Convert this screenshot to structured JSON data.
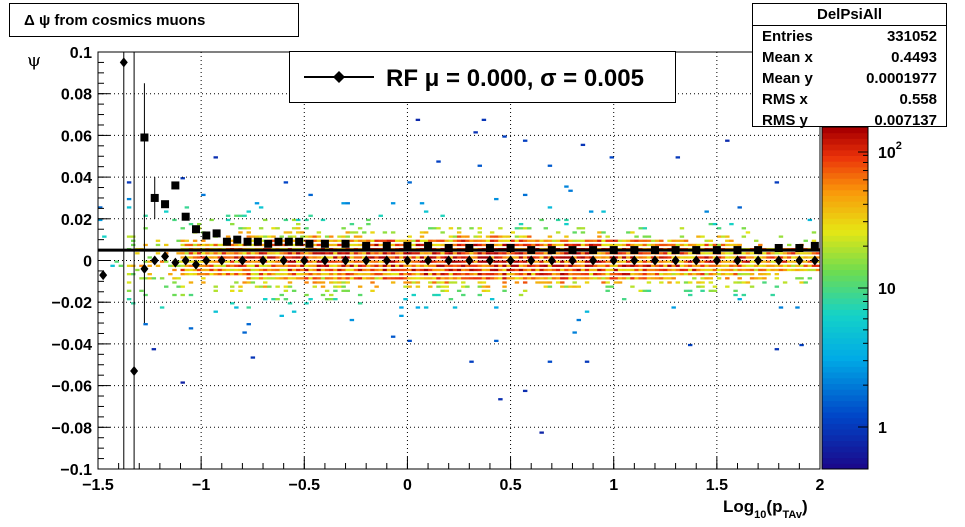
{
  "title_box": {
    "text": "Δ ψ from cosmics muons"
  },
  "stats": {
    "name": "DelPsiAll",
    "rows": [
      {
        "key": "Entries",
        "value": "331052"
      },
      {
        "key": "Mean x",
        "value": "0.4493"
      },
      {
        "key": "Mean y",
        "value": "0.0001977"
      },
      {
        "key": "RMS x",
        "value": "0.558"
      },
      {
        "key": "RMS y",
        "value": "0.007137"
      }
    ]
  },
  "legend": {
    "text": "RF μ =  0.000, σ =   0.005"
  },
  "colors": {
    "marker": "#000000",
    "palette_low": "#1a0a8c",
    "palette_high": "#b00000"
  },
  "chart_data": {
    "type": "heatmap",
    "title": "Δ ψ from cosmics muons",
    "xlabel": "Log10(pTAv)",
    "ylabel": "ψ",
    "xlim": [
      -1.5,
      2.0
    ],
    "ylim": [
      -0.1,
      0.1
    ],
    "x_ticks": [
      "−1.5",
      "−1",
      "−0.5",
      "0",
      "0.5",
      "1",
      "1.5",
      "2"
    ],
    "y_ticks": [
      "−0.1",
      "−0.08",
      "−0.06",
      "−0.04",
      "−0.02",
      "0",
      "0.02",
      "0.04",
      "0.06",
      "0.08",
      "0.1"
    ],
    "z_scale": "log",
    "z_ticks": [
      "1",
      "10",
      "10^2"
    ],
    "grid": true,
    "legend_position": "top-center",
    "density_model": {
      "center_y": 0.0,
      "sigma_y": 0.007137,
      "peak_x": 0.45
    },
    "horizontal_line_y": 0.005,
    "series": [
      {
        "name": "RF μ =  0.000, σ =   0.005",
        "marker": "diamond",
        "x": [
          -1.475,
          -1.375,
          -1.325,
          -1.275,
          -1.225,
          -1.175,
          -1.125,
          -1.075,
          -1.025,
          -0.975,
          -0.9,
          -0.8,
          -0.7,
          -0.6,
          -0.5,
          -0.4,
          -0.3,
          -0.2,
          -0.1,
          0.0,
          0.1,
          0.2,
          0.3,
          0.4,
          0.5,
          0.6,
          0.7,
          0.8,
          0.9,
          1.0,
          1.1,
          1.2,
          1.3,
          1.4,
          1.5,
          1.6,
          1.7,
          1.8,
          1.9,
          1.975
        ],
        "y": [
          -0.007,
          0.095,
          -0.053,
          -0.004,
          0.0,
          0.002,
          -0.001,
          0.0,
          -0.002,
          0.0,
          0.0,
          0.0,
          0.0,
          0.0,
          0.0,
          0.0,
          0.0,
          0.0,
          0.0,
          0.0,
          0.0,
          0.0,
          0.0,
          0.0,
          0.0,
          0.0,
          0.0,
          0.0,
          0.0,
          0.0,
          0.0,
          0.0,
          0.0,
          0.0,
          0.0,
          0.0,
          0.0,
          0.0,
          0.0,
          0.0
        ]
      },
      {
        "name": "",
        "marker": "square",
        "x": [
          -1.275,
          -1.225,
          -1.175,
          -1.125,
          -1.075,
          -1.025,
          -0.975,
          -0.925,
          -0.875,
          -0.825,
          -0.775,
          -0.725,
          -0.675,
          -0.625,
          -0.575,
          -0.525,
          -0.475,
          -0.4,
          -0.3,
          -0.2,
          -0.1,
          0.0,
          0.1,
          0.2,
          0.3,
          0.4,
          0.5,
          0.6,
          0.7,
          0.8,
          0.9,
          1.0,
          1.1,
          1.2,
          1.3,
          1.4,
          1.5,
          1.6,
          1.7,
          1.8,
          1.9,
          1.975
        ],
        "y": [
          0.059,
          0.03,
          0.027,
          0.036,
          0.021,
          0.015,
          0.012,
          0.013,
          0.009,
          0.01,
          0.009,
          0.009,
          0.008,
          0.009,
          0.009,
          0.009,
          0.008,
          0.008,
          0.008,
          0.007,
          0.007,
          0.007,
          0.007,
          0.006,
          0.006,
          0.006,
          0.006,
          0.005,
          0.005,
          0.005,
          0.005,
          0.005,
          0.005,
          0.005,
          0.005,
          0.005,
          0.005,
          0.005,
          0.005,
          0.006,
          0.006,
          0.007
        ]
      }
    ]
  }
}
